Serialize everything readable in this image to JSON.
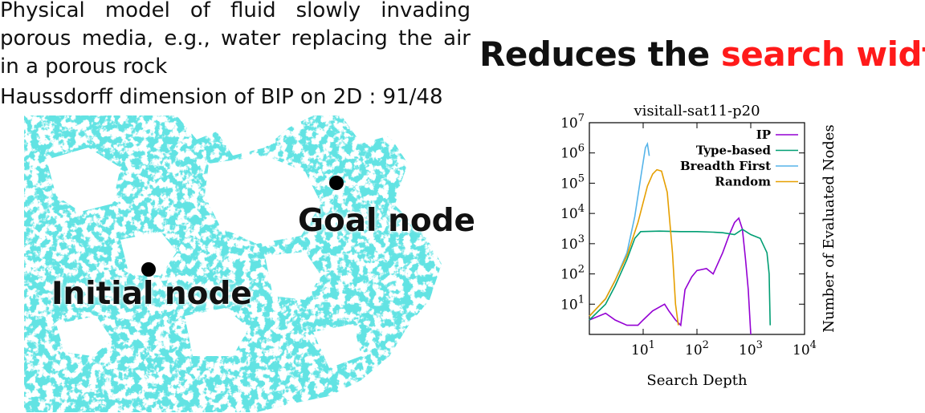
{
  "description": {
    "text": "Physical model of fluid slowly invading porous media, e.g., water replacing the air in a porous rock",
    "hausdorff": "Haussdorff dimension of BIP on 2D : 91/48"
  },
  "headline": {
    "prefix": "Reduces the ",
    "highlight": "search width",
    "highlight_color": "#ff1a1a"
  },
  "fractal": {
    "color": "#1fc4c4",
    "goal_label": "Goal node",
    "initial_label": "Initial node"
  },
  "chart_data": {
    "type": "line",
    "title": "visitall-sat11-p20",
    "xlabel": "Search Depth",
    "ylabel": "Number of Evaluated Nodes",
    "xscale": "log",
    "yscale": "log",
    "xlim": [
      1,
      10000
    ],
    "ylim": [
      1,
      10000000
    ],
    "x_ticks": [
      "10^1",
      "10^2",
      "10^3",
      "10^4"
    ],
    "y_ticks": [
      "10^1",
      "10^2",
      "10^3",
      "10^4",
      "10^5",
      "10^6",
      "10^7"
    ],
    "legend_position": "top-right",
    "series": [
      {
        "name": "IP",
        "color": "#9400d3",
        "points": [
          [
            1,
            3
          ],
          [
            2,
            5
          ],
          [
            3,
            3
          ],
          [
            5,
            2
          ],
          [
            8,
            2
          ],
          [
            10,
            3
          ],
          [
            15,
            6
          ],
          [
            20,
            8
          ],
          [
            25,
            10
          ],
          [
            30,
            6
          ],
          [
            40,
            3
          ],
          [
            50,
            2
          ],
          [
            60,
            30
          ],
          [
            80,
            80
          ],
          [
            100,
            130
          ],
          [
            150,
            150
          ],
          [
            200,
            100
          ],
          [
            300,
            500
          ],
          [
            400,
            2000
          ],
          [
            500,
            5000
          ],
          [
            600,
            7000
          ],
          [
            700,
            3000
          ],
          [
            800,
            300
          ],
          [
            900,
            30
          ],
          [
            1000,
            1
          ]
        ]
      },
      {
        "name": "Type-based",
        "color": "#009e73",
        "points": [
          [
            1,
            3
          ],
          [
            2,
            10
          ],
          [
            3,
            40
          ],
          [
            5,
            300
          ],
          [
            7,
            1500
          ],
          [
            9,
            2500
          ],
          [
            20,
            2600
          ],
          [
            50,
            2500
          ],
          [
            100,
            2500
          ],
          [
            200,
            2400
          ],
          [
            300,
            2300
          ],
          [
            500,
            2000
          ],
          [
            700,
            3000
          ],
          [
            1000,
            2000
          ],
          [
            1500,
            1500
          ],
          [
            2000,
            500
          ],
          [
            2200,
            100
          ],
          [
            2300,
            2
          ]
        ]
      },
      {
        "name": "Breadth First",
        "color": "#56b4e9",
        "points": [
          [
            1,
            4
          ],
          [
            2,
            15
          ],
          [
            3,
            60
          ],
          [
            5,
            500
          ],
          [
            7,
            8000
          ],
          [
            9,
            150000
          ],
          [
            11,
            1500000
          ],
          [
            12,
            2000000
          ],
          [
            13,
            800000
          ]
        ]
      },
      {
        "name": "Random",
        "color": "#e69f00",
        "points": [
          [
            1,
            4
          ],
          [
            2,
            15
          ],
          [
            3,
            60
          ],
          [
            5,
            400
          ],
          [
            8,
            5000
          ],
          [
            12,
            80000
          ],
          [
            15,
            200000
          ],
          [
            18,
            280000
          ],
          [
            22,
            250000
          ],
          [
            28,
            50000
          ],
          [
            35,
            500
          ],
          [
            40,
            10
          ],
          [
            45,
            2
          ]
        ]
      }
    ]
  }
}
